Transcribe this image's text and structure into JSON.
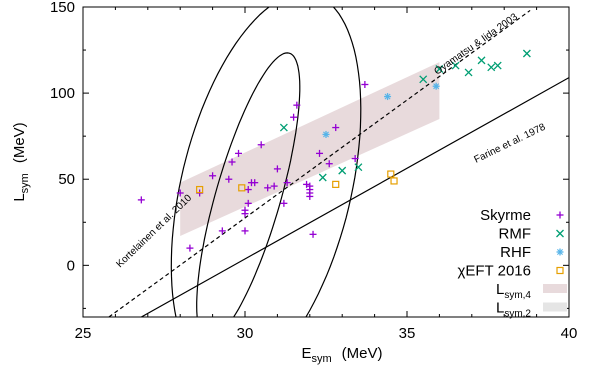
{
  "chart_data": {
    "type": "scatter",
    "xlim": [
      25,
      40
    ],
    "ylim": [
      -30,
      150
    ],
    "xticks": [
      25,
      30,
      35,
      40
    ],
    "yticks": [
      0,
      50,
      100,
      150
    ],
    "xlabel": {
      "main": "E",
      "sub": "sym",
      "unit": "(MeV)"
    },
    "ylabel": {
      "main": "L",
      "sub": "sym",
      "unit": "(MeV)"
    },
    "grid": false,
    "legend_position": "bottom-right",
    "lines": [
      {
        "label": "Oyamatsu & Iida 2003",
        "style": "dashed",
        "color": "#000000",
        "points": [
          [
            25.8,
            -30
          ],
          [
            38.8,
            148
          ]
        ]
      },
      {
        "label": "Farine et al. 1978",
        "style": "solid",
        "color": "#000000",
        "points": [
          [
            26.8,
            -30
          ],
          [
            40,
            109
          ]
        ]
      }
    ],
    "ellipses": [
      {
        "label": "Kortelainen et al. 2010",
        "style": "solid",
        "color": "#000000",
        "center": [
          30.65,
          45
        ],
        "semi_axes": [
          6.15,
          2.62
        ],
        "angle_deg": 76.5
      },
      {
        "label": "",
        "style": "solid",
        "color": "#000000",
        "center": [
          30.1,
          40
        ],
        "semi_axes": [
          4.6,
          1.0
        ],
        "angle_deg": 74
      }
    ],
    "band": {
      "label": "L_sym,4",
      "color": "#e8dadc",
      "polygon": [
        [
          28,
          48
        ],
        [
          36,
          118
        ],
        [
          36,
          85
        ],
        [
          28,
          17
        ]
      ]
    },
    "series": [
      {
        "name": "Skyrme",
        "marker": "plus",
        "color": "#9400d3",
        "points": [
          [
            26.8,
            38
          ],
          [
            28.0,
            42
          ],
          [
            28.3,
            10
          ],
          [
            28.6,
            42
          ],
          [
            29.0,
            52
          ],
          [
            29.3,
            20
          ],
          [
            29.5,
            50
          ],
          [
            29.6,
            60
          ],
          [
            29.8,
            65
          ],
          [
            30.0,
            20
          ],
          [
            30.0,
            30
          ],
          [
            30.0,
            32
          ],
          [
            30.1,
            44
          ],
          [
            30.1,
            36
          ],
          [
            30.2,
            48
          ],
          [
            30.3,
            48
          ],
          [
            30.5,
            70
          ],
          [
            30.7,
            45
          ],
          [
            30.9,
            46
          ],
          [
            31.0,
            56
          ],
          [
            31.2,
            36
          ],
          [
            31.3,
            48
          ],
          [
            31.5,
            86
          ],
          [
            31.6,
            93
          ],
          [
            31.9,
            47
          ],
          [
            32.0,
            40
          ],
          [
            32.0,
            42
          ],
          [
            32.0,
            44
          ],
          [
            32.0,
            46
          ],
          [
            32.1,
            18
          ],
          [
            32.3,
            65
          ],
          [
            32.6,
            59
          ],
          [
            32.8,
            80
          ],
          [
            33.4,
            62
          ],
          [
            33.7,
            105
          ]
        ]
      },
      {
        "name": "RMF",
        "marker": "x",
        "color": "#009e73",
        "points": [
          [
            31.2,
            80
          ],
          [
            32.4,
            51
          ],
          [
            33.0,
            55
          ],
          [
            33.5,
            57
          ],
          [
            35.5,
            108
          ],
          [
            36.0,
            114
          ],
          [
            36.5,
            116
          ],
          [
            36.9,
            112
          ],
          [
            37.3,
            119
          ],
          [
            37.6,
            115
          ],
          [
            37.8,
            116
          ],
          [
            38.7,
            123
          ]
        ]
      },
      {
        "name": "RHF",
        "marker": "star",
        "color": "#56b4e9",
        "points": [
          [
            32.5,
            76
          ],
          [
            34.4,
            98
          ],
          [
            35.9,
            104
          ]
        ]
      },
      {
        "name": "χEFT 2016",
        "marker": "square",
        "color": "#e69f00",
        "points": [
          [
            28.6,
            44
          ],
          [
            29.9,
            45
          ],
          [
            32.8,
            47
          ],
          [
            34.5,
            53
          ],
          [
            34.6,
            49
          ]
        ]
      }
    ],
    "legend": [
      {
        "label": "Skyrme",
        "marker": "plus",
        "color": "#9400d3"
      },
      {
        "label": "RMF",
        "marker": "x",
        "color": "#009e73"
      },
      {
        "label": "RHF",
        "marker": "star",
        "color": "#56b4e9"
      },
      {
        "label": "χEFT 2016",
        "marker": "square",
        "color": "#e69f00"
      },
      {
        "main": "L",
        "sub": "sym,4",
        "marker": "swatch",
        "color": "#e8dadc"
      },
      {
        "main": "L",
        "sub": "sym,2",
        "marker": "swatch",
        "color": "#e5e5e5"
      }
    ]
  }
}
